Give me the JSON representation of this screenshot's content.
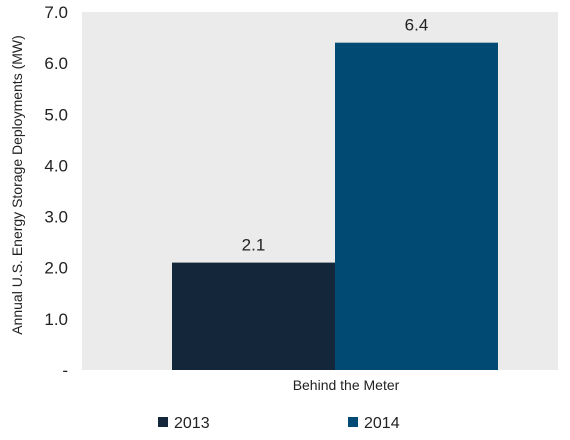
{
  "chart_data": {
    "type": "bar",
    "categories": [
      "Behind the Meter"
    ],
    "series": [
      {
        "name": "2013",
        "values": [
          2.1
        ],
        "color": "#13263a"
      },
      {
        "name": "2014",
        "values": [
          6.4
        ],
        "color": "#004a73"
      }
    ],
    "data_labels": [
      "2.1",
      "6.4"
    ],
    "ylabel": "Annual U.S. Energy Storage Deployments (MW)",
    "ylim": [
      0,
      7
    ],
    "yticks": [
      "-",
      "1.0",
      "2.0",
      "3.0",
      "4.0",
      "5.0",
      "6.0",
      "7.0"
    ],
    "grid": false,
    "plot_background": "#ebebeb",
    "legend_position": "bottom"
  }
}
